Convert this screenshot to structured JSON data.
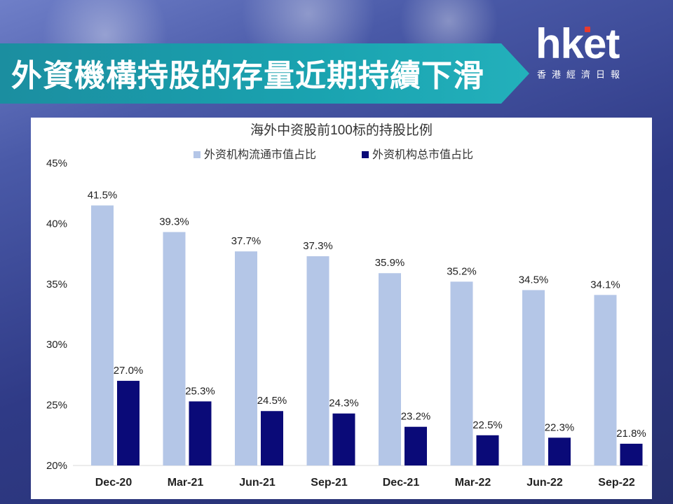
{
  "banner": {
    "title": "外資機構持股的存量近期持續下滑"
  },
  "logo": {
    "main": "hket",
    "sub": "香港經濟日報"
  },
  "colors": {
    "series1": "#b4c6e7",
    "series2": "#0a0a78",
    "banner": "#1aa3b0"
  },
  "chart_data": {
    "type": "bar",
    "title": "海外中资股前100标的持股比例",
    "categories": [
      "Dec-20",
      "Mar-21",
      "Jun-21",
      "Sep-21",
      "Dec-21",
      "Mar-22",
      "Jun-22",
      "Sep-22"
    ],
    "series": [
      {
        "name": "外资机构流通市值占比",
        "values": [
          41.5,
          39.3,
          37.7,
          37.3,
          35.9,
          35.2,
          34.5,
          34.1
        ],
        "labels": [
          "41.5%",
          "39.3%",
          "37.7%",
          "37.3%",
          "35.9%",
          "35.2%",
          "34.5%",
          "34.1%"
        ]
      },
      {
        "name": "外资机构总市值占比",
        "values": [
          27.0,
          25.3,
          24.5,
          24.3,
          23.2,
          22.5,
          22.3,
          21.8
        ],
        "labels": [
          "27.0%",
          "25.3%",
          "24.5%",
          "24.3%",
          "23.2%",
          "22.5%",
          "22.3%",
          "21.8%"
        ]
      }
    ],
    "ylim": [
      20,
      45
    ],
    "yticks": [
      20,
      25,
      30,
      35,
      40,
      45
    ],
    "ytick_labels": [
      "20%",
      "25%",
      "30%",
      "35%",
      "40%",
      "45%"
    ],
    "legend_position": "top",
    "grid": false
  }
}
